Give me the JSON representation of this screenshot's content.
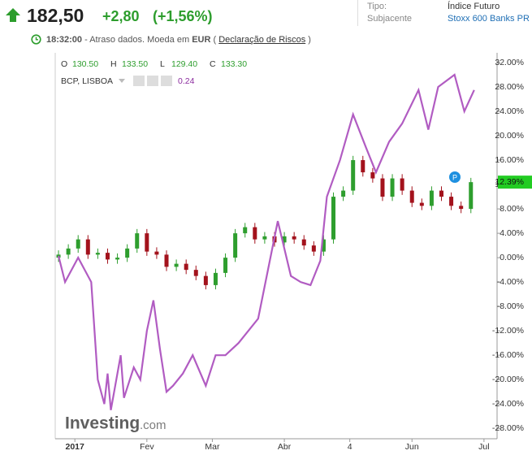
{
  "header": {
    "price": "182,50",
    "change": "+2,80",
    "change_pct": "(+1,56%)",
    "tipo_label": "Tipo:",
    "tipo_value": "Índice Futuro",
    "subjacente_label": "Subjacente",
    "subjacente_value": "Stoxx 600 Banks PR",
    "time": "18:32:00",
    "delay_text": "- Atraso dados. Moeda em",
    "currency": "EUR",
    "paren_open": "(",
    "disclaimer": "Declaração de Riscos",
    "paren_close": ")"
  },
  "chart_data": {
    "type": "candlestick",
    "watermark": "Investing",
    "watermark_suffix": ".com",
    "ohlc": [
      {
        "label": "O",
        "value": "130.50"
      },
      {
        "label": "H",
        "value": "133.50"
      },
      {
        "label": "L",
        "value": "129.40"
      },
      {
        "label": "C",
        "value": "133.30"
      }
    ],
    "up_color": "#2e9e2e",
    "down_color": "#a3121c",
    "x": [
      0,
      3,
      6,
      9,
      12,
      15,
      18,
      21,
      24,
      27,
      30,
      33,
      36,
      39,
      42,
      45,
      48,
      51,
      54,
      57,
      60,
      63,
      66,
      69,
      72,
      75,
      78,
      81,
      84,
      87,
      90,
      93,
      96,
      99,
      102,
      105,
      108,
      111,
      114,
      117,
      120,
      123,
      126
    ],
    "open": [
      0,
      0.5,
      1.5,
      3,
      0.5,
      0.8,
      -0.3,
      0,
      1.5,
      4,
      1,
      0.5,
      -1.5,
      -1,
      -2,
      -3,
      -4.5,
      -2.5,
      0,
      4,
      5,
      3,
      3.5,
      2.5,
      3.5,
      3,
      2,
      1,
      3,
      10,
      11,
      16,
      14,
      13,
      10,
      13,
      11,
      9,
      8.5,
      11,
      10,
      8.5,
      8
    ],
    "high": [
      1.2,
      2.2,
      3.7,
      3.7,
      1.5,
      1.5,
      0.7,
      2.2,
      4.7,
      4.7,
      1.7,
      1.2,
      -0.3,
      -0.3,
      -1.3,
      -2.3,
      -1.8,
      0.7,
      4.7,
      5.7,
      5.7,
      4.2,
      4.2,
      4.2,
      4.2,
      3.7,
      2.7,
      3.7,
      10.7,
      11.7,
      16.7,
      16.7,
      14.7,
      13.7,
      13.7,
      13.7,
      11.7,
      9.7,
      11.7,
      11.7,
      10.7,
      9.2,
      13.09
    ],
    "low": [
      -0.7,
      -0.2,
      0.8,
      -0.2,
      -0.2,
      -1,
      -1,
      -0.7,
      0.8,
      0.3,
      -0.2,
      -2.2,
      -2.2,
      -2.7,
      -3.7,
      -5.2,
      -5.2,
      -3.2,
      -0.7,
      3.3,
      2.3,
      2.3,
      1.8,
      1.8,
      2.3,
      1.3,
      0.3,
      0.3,
      2.3,
      9.3,
      10.3,
      13.3,
      12.3,
      9.3,
      9.3,
      10.3,
      8.3,
      7.8,
      7.8,
      9.3,
      7.8,
      7.3,
      7.3
    ],
    "close": [
      0.5,
      1.5,
      3,
      0.5,
      0.8,
      -0.3,
      0,
      1.5,
      4,
      1,
      0.5,
      -1.5,
      -1,
      -2,
      -3,
      -4.5,
      -2.5,
      0,
      4,
      5,
      3,
      3.5,
      2.5,
      3.5,
      3,
      2,
      1,
      3,
      10,
      11,
      16,
      14,
      13,
      10,
      13,
      11,
      9,
      8.5,
      11,
      10,
      8.5,
      8,
      12.39
    ],
    "current_label": {
      "value": 12.39,
      "label": "12.39%"
    },
    "lines": [
      {
        "name": "BCP, LISBOA",
        "indicator_value": "0.24",
        "color": "#b15cc2",
        "x": [
          0,
          2,
          6,
          10,
          12,
          14,
          15,
          16,
          19,
          20,
          23,
          25,
          27,
          29,
          31,
          33,
          35,
          38,
          41,
          45,
          48,
          51,
          55,
          58,
          61,
          64,
          67,
          71,
          74,
          77,
          80,
          82,
          86,
          90,
          94,
          97,
          101,
          105,
          110,
          113,
          116,
          121,
          124,
          127
        ],
        "values": [
          0.3,
          -4,
          0,
          -4,
          -20,
          -24,
          -19,
          -25,
          -16,
          -23,
          -18,
          -20,
          -12,
          -7,
          -15,
          -22,
          -21,
          -19,
          -16,
          -21,
          -16,
          -16,
          -14,
          -12,
          -10,
          -2,
          6,
          -3,
          -4,
          -4.5,
          -0.5,
          10,
          16,
          23.5,
          18,
          14,
          19,
          22,
          27.5,
          21,
          28,
          30,
          24,
          27.5
        ]
      }
    ],
    "xlim": [
      -1,
      134
    ],
    "xticks": [
      {
        "value": 5,
        "label": "2017"
      },
      {
        "value": 27,
        "label": "Fev"
      },
      {
        "value": 47,
        "label": "Mar"
      },
      {
        "value": 69,
        "label": "Abr"
      },
      {
        "value": 89,
        "label": "4"
      },
      {
        "value": 108,
        "label": "Jun"
      },
      {
        "value": 130,
        "label": "Jul"
      }
    ],
    "ylim": [
      -29.7,
      33.6
    ],
    "yticks": [
      {
        "value": 32,
        "label": "32.00%"
      },
      {
        "value": 28,
        "label": "28.00%"
      },
      {
        "value": 24,
        "label": "24.00%"
      },
      {
        "value": 20,
        "label": "20.00%"
      },
      {
        "value": 16,
        "label": "16.00%"
      },
      {
        "value": 12,
        "label": "12.00%"
      },
      {
        "value": 8,
        "label": "8.00%"
      },
      {
        "value": 4,
        "label": "4.00%"
      },
      {
        "value": 0,
        "label": "0.00%"
      },
      {
        "value": -4,
        "label": "-4.00%"
      },
      {
        "value": -8,
        "label": "-8.00%"
      },
      {
        "value": -12,
        "label": "-12.00%"
      },
      {
        "value": -16,
        "label": "-16.00%"
      },
      {
        "value": -20,
        "label": "-20.00%"
      },
      {
        "value": -24,
        "label": "-24.00%"
      },
      {
        "value": -28,
        "label": "-28.00%"
      }
    ]
  }
}
